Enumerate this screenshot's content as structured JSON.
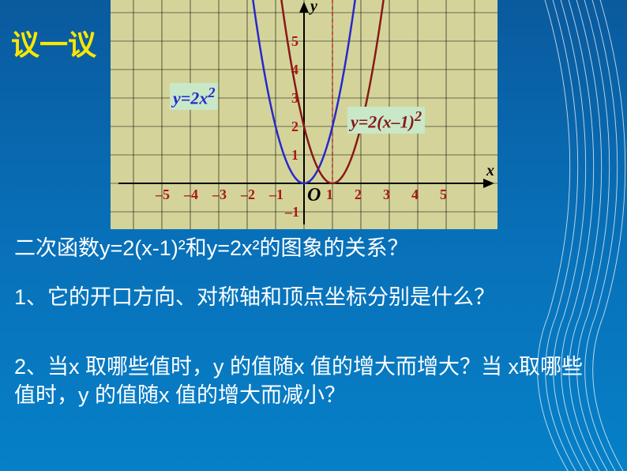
{
  "title": "议一议",
  "chart": {
    "type": "line",
    "background_color": "#d4d49a",
    "grid_color": "#000000",
    "xlim": [
      -5,
      5
    ],
    "ylim": [
      -1,
      5
    ],
    "x_ticks": [
      -5,
      -4,
      -3,
      -2,
      -1,
      1,
      2,
      3,
      4,
      5
    ],
    "y_ticks": [
      1,
      2,
      3,
      4,
      5
    ],
    "x_tick_labels": [
      "–5",
      "–4",
      "–3",
      "–2",
      "–1",
      "1",
      "2",
      "3",
      "4",
      "5"
    ],
    "y_tick_labels": [
      "1",
      "2",
      "3",
      "4",
      "5"
    ],
    "tick_color": "#aa1818",
    "tick_fontsize": 18,
    "origin_label": "O",
    "neg_y_label": "–1",
    "x_axis_label": "x",
    "y_axis_label": "y",
    "axis_label_color": "#000000",
    "axis_label_fontsize": 20,
    "axis_color": "#000000",
    "axis_width": 2,
    "dashed_line": {
      "x": 1,
      "color": "#cc2020",
      "dash": "4,4",
      "width": 1.5
    },
    "series": [
      {
        "name": "y=2x²",
        "label": "y=2x²",
        "label_html": "<span style=\"font-style:italic\">y</span>=2<span style=\"font-style:italic\">x</span><sup>2</sup>",
        "color": "#2828cc",
        "width": 2.5,
        "formula_a": 2,
        "formula_h": 0,
        "points_x": [
          -1.6,
          -1.4,
          -1.2,
          -1.0,
          -0.8,
          -0.6,
          -0.4,
          -0.2,
          0,
          0.2,
          0.4,
          0.6,
          0.8,
          1.0,
          1.2,
          1.4,
          1.6
        ]
      },
      {
        "name": "y=2(x-1)²",
        "label": "y=2(x–1)²",
        "label_html": "y=2(<span style=\"font-style:italic\">x</span>–1)<sup>2</sup>",
        "color": "#881818",
        "width": 2.5,
        "formula_a": 2,
        "formula_h": 1,
        "points_x": [
          -0.6,
          -0.4,
          -0.2,
          0,
          0.2,
          0.4,
          0.6,
          0.8,
          1.0,
          1.2,
          1.4,
          1.6,
          1.8,
          2.0,
          2.2,
          2.4,
          2.6
        ]
      }
    ]
  },
  "questions": {
    "relation": "二次函数y=2(x-1)²和y=2x²的图象的关系？",
    "q1": "1、它的开口方向、对称轴和顶点坐标分别是什么？",
    "q2": "2、当x 取哪些值时，y 的值随x 值的增大而增大？当 x取哪些值时，y 的值随x 值的增大而减小？"
  },
  "decor": {
    "line_color": "#ffffff",
    "line_opacity": 0.7
  }
}
